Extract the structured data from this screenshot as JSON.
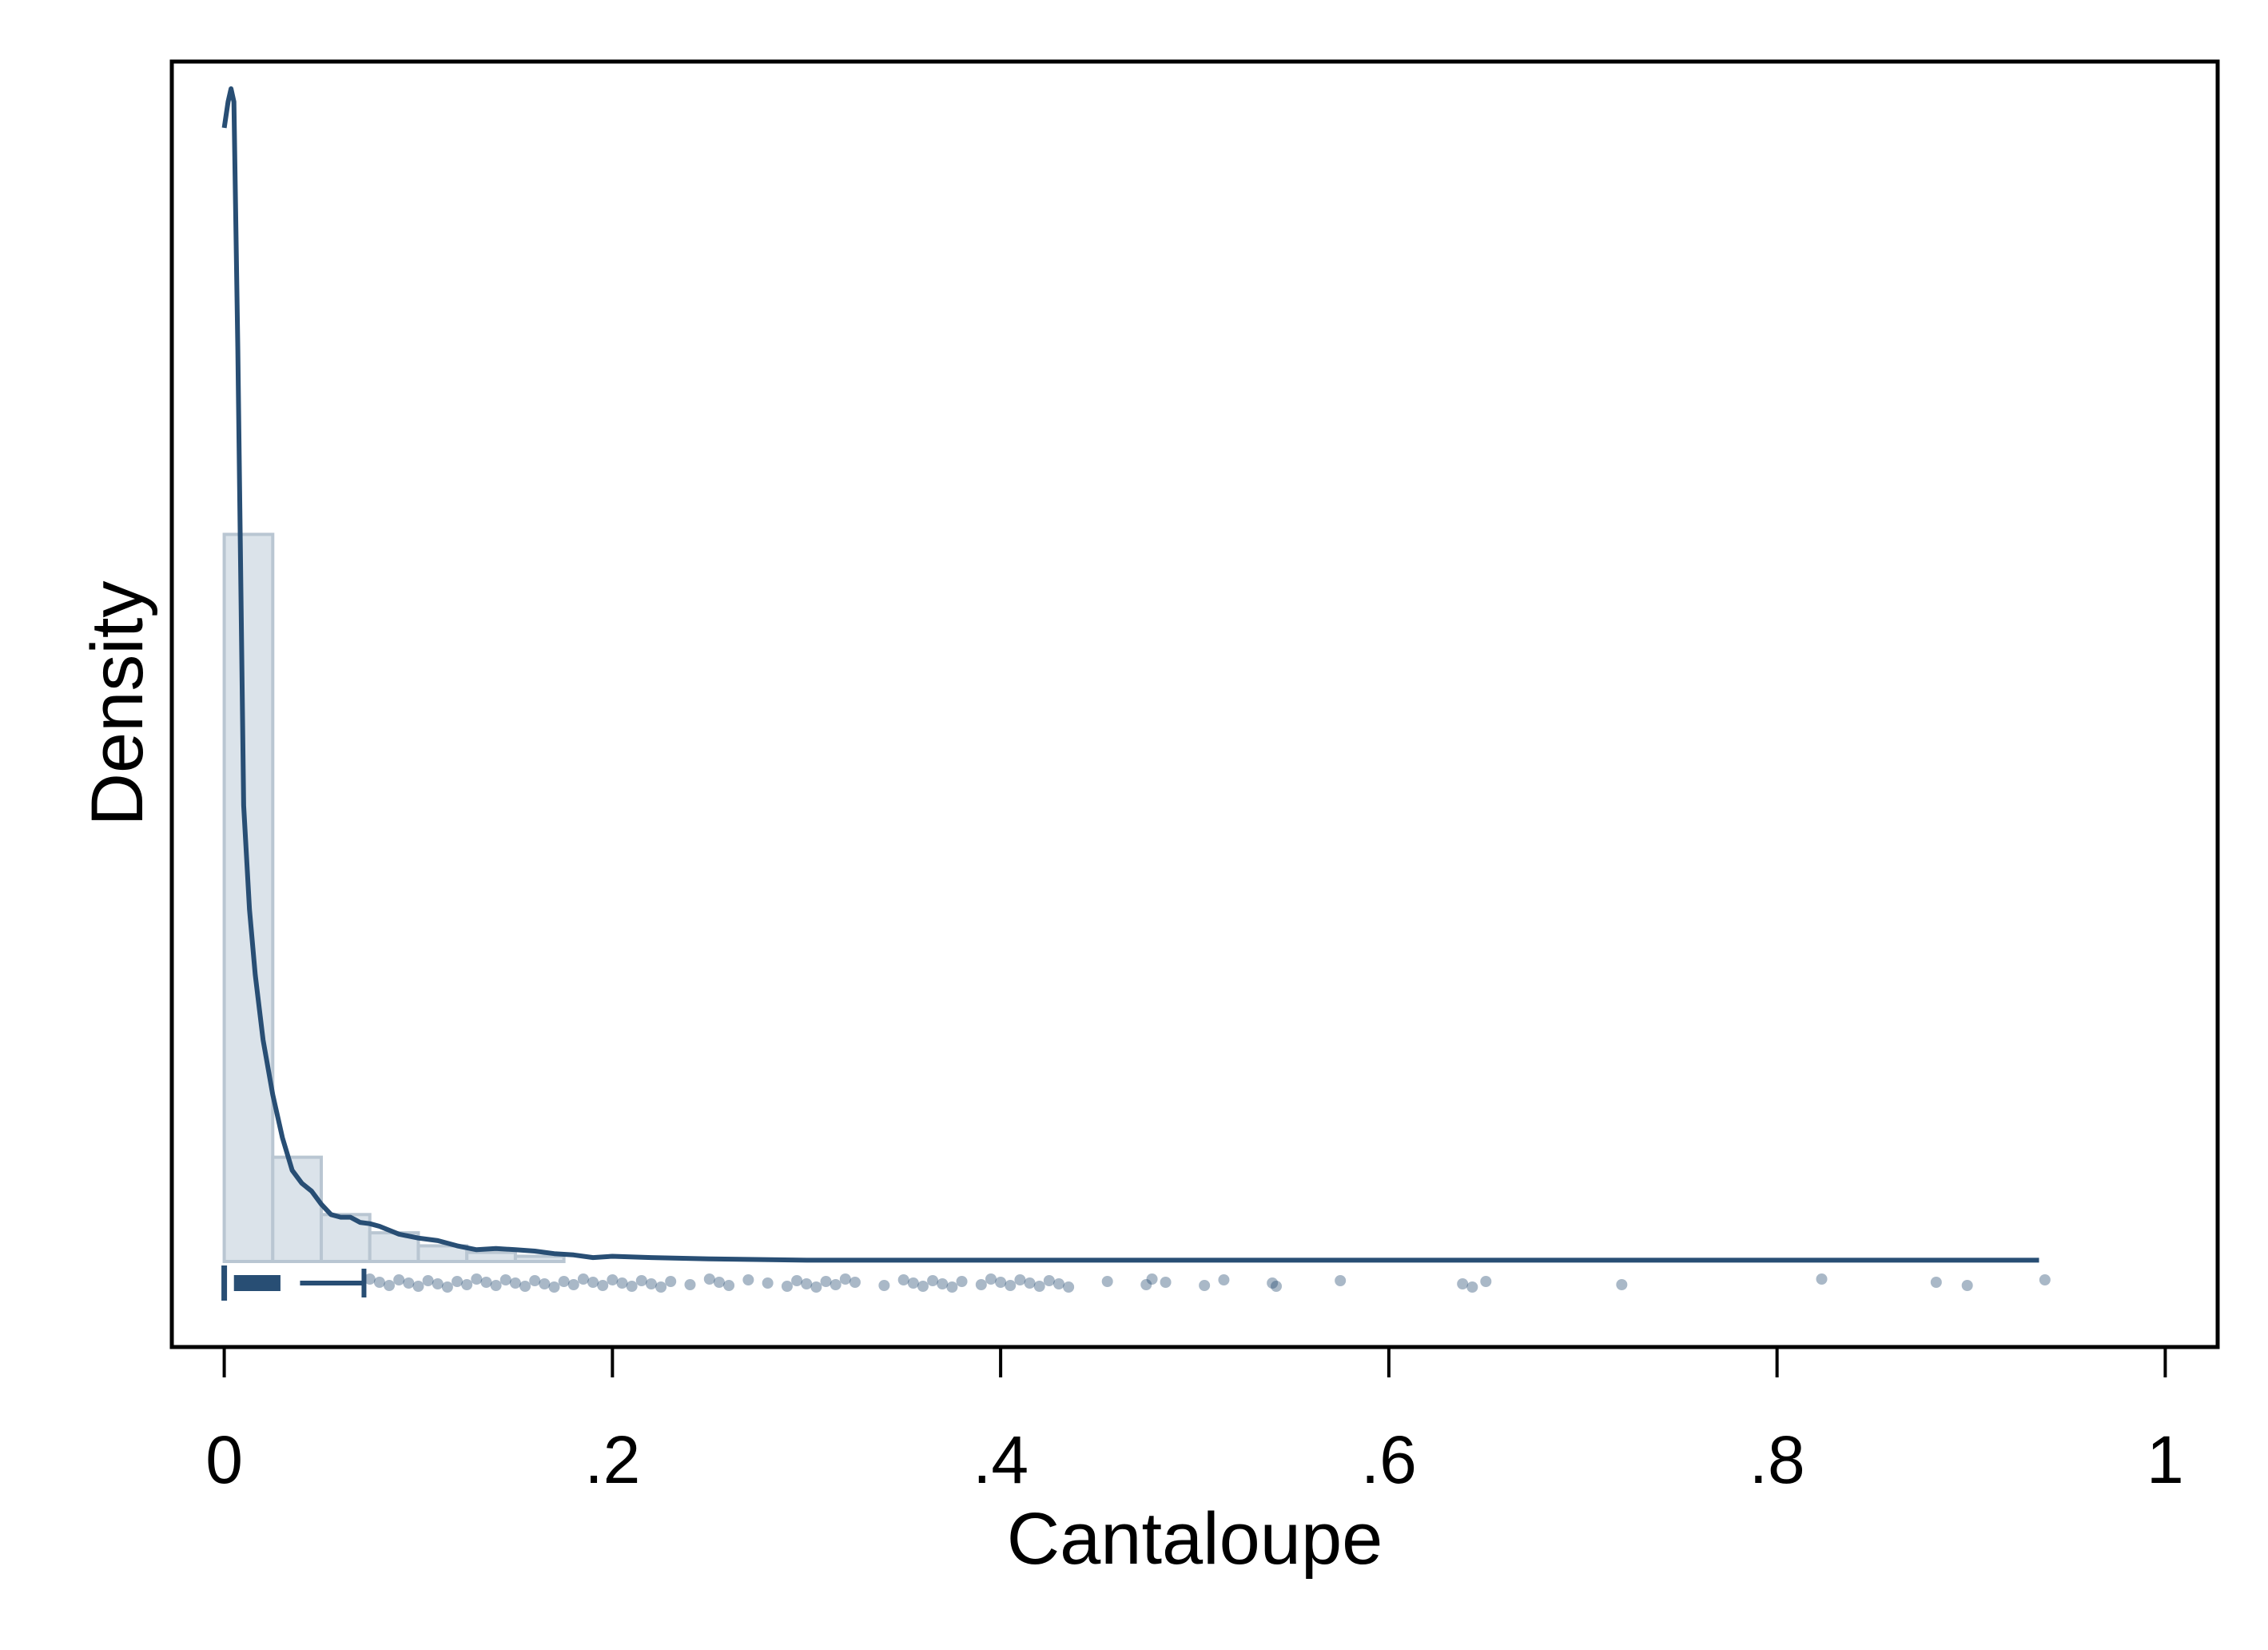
{
  "chart_data": {
    "type": "histogram",
    "title": "",
    "xlabel": "Cantaloupe",
    "ylabel": "Density",
    "xlim": [
      -0.027,
      1.027
    ],
    "x_ticks": [
      0,
      0.2,
      0.4,
      0.6,
      0.8,
      1
    ],
    "x_tick_labels": [
      "0",
      ".2",
      ".4",
      ".6",
      ".8",
      "1"
    ],
    "y_axis_ticks_shown": false,
    "grid": false,
    "legend": "none",
    "colors": {
      "main": "#284e74",
      "bar_fill": "#dbe3ea",
      "bar_stroke": "#b9c6d2",
      "frame": "#000000"
    },
    "histogram": {
      "bin_width": 0.025,
      "bin_starts": [
        0,
        0.025,
        0.05,
        0.075,
        0.1,
        0.125,
        0.15
      ],
      "density": [
        0.558,
        0.08,
        0.036,
        0.022,
        0.012,
        0.007,
        0.004
      ]
    },
    "kde": {
      "x": [
        0.0,
        0.002,
        0.0035,
        0.005,
        0.007,
        0.01,
        0.013,
        0.016,
        0.02,
        0.025,
        0.03,
        0.035,
        0.04,
        0.045,
        0.05,
        0.055,
        0.06,
        0.065,
        0.07,
        0.075,
        0.08,
        0.085,
        0.09,
        0.1,
        0.11,
        0.12,
        0.13,
        0.14,
        0.15,
        0.16,
        0.17,
        0.18,
        0.19,
        0.2,
        0.22,
        0.25,
        0.3,
        0.35,
        0.4,
        0.5,
        0.6,
        0.7,
        0.8,
        0.935
      ],
      "density": [
        0.87,
        0.89,
        0.9,
        0.89,
        0.7,
        0.35,
        0.27,
        0.22,
        0.17,
        0.128,
        0.095,
        0.07,
        0.06,
        0.054,
        0.044,
        0.036,
        0.034,
        0.034,
        0.03,
        0.029,
        0.027,
        0.024,
        0.021,
        0.018,
        0.016,
        0.012,
        0.009,
        0.01,
        0.009,
        0.008,
        0.006,
        0.005,
        0.003,
        0.004,
        0.003,
        0.002,
        0.001,
        0.001,
        0.001,
        0.001,
        0.001,
        0.001,
        0.001,
        0.001
      ]
    },
    "boxplot": {
      "min": 0.0,
      "q1": 0.005,
      "median": 0.03,
      "q3": 0.03,
      "upper_whisker": 0.072
    },
    "outliers_x": [
      0.075,
      0.08,
      0.085,
      0.09,
      0.095,
      0.1,
      0.105,
      0.11,
      0.115,
      0.12,
      0.125,
      0.13,
      0.135,
      0.14,
      0.145,
      0.15,
      0.155,
      0.16,
      0.165,
      0.17,
      0.175,
      0.18,
      0.185,
      0.19,
      0.195,
      0.2,
      0.205,
      0.21,
      0.215,
      0.22,
      0.225,
      0.23,
      0.24,
      0.25,
      0.255,
      0.26,
      0.27,
      0.28,
      0.29,
      0.295,
      0.3,
      0.305,
      0.31,
      0.315,
      0.32,
      0.325,
      0.34,
      0.35,
      0.355,
      0.36,
      0.365,
      0.37,
      0.375,
      0.38,
      0.39,
      0.395,
      0.4,
      0.405,
      0.41,
      0.415,
      0.42,
      0.425,
      0.43,
      0.435,
      0.455,
      0.475,
      0.478,
      0.485,
      0.505,
      0.515,
      0.54,
      0.542,
      0.575,
      0.638,
      0.643,
      0.65,
      0.72,
      0.823,
      0.882,
      0.898,
      0.938
    ]
  }
}
